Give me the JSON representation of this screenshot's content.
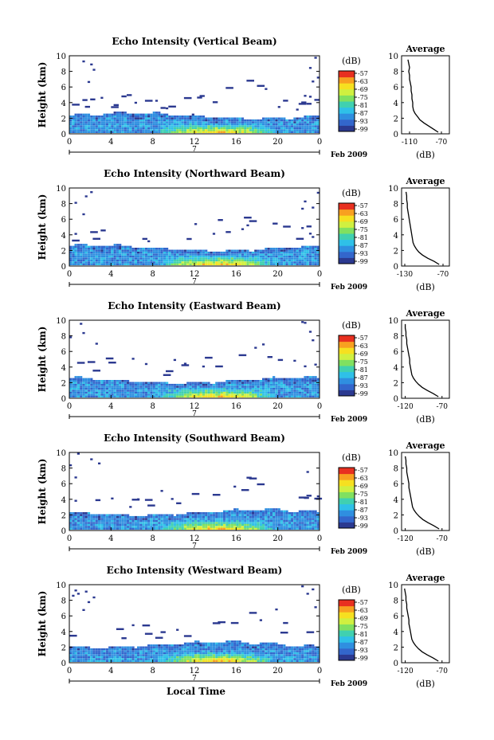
{
  "figure": {
    "x_axis_label": "Local Time",
    "date_label": "Feb 2009",
    "day_label": "7",
    "colorbar_unit": "(dB)",
    "colorbar_ticks": [
      "-57",
      "-63",
      "-69",
      "-75",
      "-81",
      "-87",
      "-93",
      "-99"
    ],
    "profile_title": "Average",
    "profile_unit": "(dB)"
  },
  "colorscale": [
    "#2b3990",
    "#3366cc",
    "#2f8fe0",
    "#2fc0e8",
    "#40d0b0",
    "#80e060",
    "#d0f040",
    "#f6e020",
    "#f8a020",
    "#e83020"
  ],
  "chart_data": [
    {
      "type": "heatmap",
      "title": "Echo Intensity (Vertical Beam)",
      "ylabel": "Height (km)",
      "x_ticks": [
        "0",
        "4",
        "8",
        "12",
        "16",
        "20",
        "0"
      ],
      "y_ticks": [
        "0",
        "2",
        "4",
        "6",
        "8",
        "10"
      ],
      "xlim": [
        0,
        24
      ],
      "ylim": [
        0,
        10
      ],
      "zlim": [
        -99,
        -57
      ],
      "profile": {
        "title": "Average",
        "xlabel": "(dB)",
        "x_ticks": [
          "-110",
          "-70"
        ],
        "xlim": [
          -120,
          -60
        ],
        "heights": [
          0.2,
          0.6,
          1.0,
          1.4,
          1.8,
          2.2,
          2.6,
          3.0,
          3.5,
          4.0,
          4.5,
          5.0,
          5.5,
          6.0,
          6.5,
          7.0,
          7.5,
          8.0,
          8.5,
          9.0,
          9.5
        ],
        "values": [
          -74,
          -80,
          -86,
          -92,
          -97,
          -100,
          -103,
          -105,
          -106,
          -106,
          -107,
          -107,
          -108,
          -108,
          -109,
          -110,
          -110,
          -111,
          -110,
          -111,
          -112
        ]
      }
    },
    {
      "type": "heatmap",
      "title": "Echo Intensity (Northward Beam)",
      "ylabel": "Height (km)",
      "x_ticks": [
        "0",
        "4",
        "8",
        "12",
        "16",
        "20",
        "0"
      ],
      "y_ticks": [
        "0",
        "2",
        "4",
        "6",
        "8",
        "10"
      ],
      "xlim": [
        0,
        24
      ],
      "ylim": [
        0,
        10
      ],
      "zlim": [
        -99,
        -57
      ],
      "profile": {
        "title": "Average",
        "xlabel": "(dB)",
        "x_ticks": [
          "-130",
          "-70"
        ],
        "xlim": [
          -135,
          -60
        ],
        "heights": [
          0.2,
          0.6,
          1.0,
          1.4,
          1.8,
          2.2,
          2.6,
          3.0,
          3.5,
          4.0,
          4.5,
          5.0,
          5.5,
          6.0,
          6.5,
          7.0,
          7.5,
          8.0,
          8.5,
          9.0,
          9.5
        ],
        "values": [
          -76,
          -84,
          -94,
          -102,
          -108,
          -112,
          -115,
          -117,
          -118,
          -119,
          -120,
          -121,
          -122,
          -123,
          -124,
          -125,
          -126,
          -126,
          -127,
          -127,
          -128
        ]
      }
    },
    {
      "type": "heatmap",
      "title": "Echo Intensity (Eastward Beam)",
      "ylabel": "Height (km)",
      "x_ticks": [
        "0",
        "4",
        "8",
        "12",
        "16",
        "20",
        "0"
      ],
      "y_ticks": [
        "0",
        "2",
        "4",
        "6",
        "8",
        "10"
      ],
      "xlim": [
        0,
        24
      ],
      "ylim": [
        0,
        10
      ],
      "zlim": [
        -99,
        -57
      ],
      "profile": {
        "title": "Average",
        "xlabel": "(dB)",
        "x_ticks": [
          "-120",
          "-70"
        ],
        "xlim": [
          -125,
          -60
        ],
        "heights": [
          0.2,
          0.6,
          1.0,
          1.4,
          1.8,
          2.2,
          2.6,
          3.0,
          3.5,
          4.0,
          4.5,
          5.0,
          5.5,
          6.0,
          6.5,
          7.0,
          7.5,
          8.0,
          8.5,
          9.0,
          9.5
        ],
        "values": [
          -75,
          -82,
          -90,
          -97,
          -102,
          -106,
          -109,
          -111,
          -112,
          -113,
          -114,
          -114,
          -115,
          -116,
          -117,
          -118,
          -118,
          -119,
          -119,
          -120,
          -120
        ]
      }
    },
    {
      "type": "heatmap",
      "title": "Echo Intensity (Southward Beam)",
      "ylabel": "Height (km)",
      "x_ticks": [
        "0",
        "4",
        "8",
        "12",
        "16",
        "20",
        "0"
      ],
      "y_ticks": [
        "0",
        "2",
        "4",
        "6",
        "8",
        "10"
      ],
      "xlim": [
        0,
        24
      ],
      "ylim": [
        0,
        10
      ],
      "zlim": [
        -99,
        -57
      ],
      "profile": {
        "title": "Average",
        "xlabel": "(dB)",
        "x_ticks": [
          "-120",
          "-70"
        ],
        "xlim": [
          -125,
          -60
        ],
        "heights": [
          0.2,
          0.6,
          1.0,
          1.4,
          1.8,
          2.2,
          2.6,
          3.0,
          3.5,
          4.0,
          4.5,
          5.0,
          5.5,
          6.0,
          6.5,
          7.0,
          7.5,
          8.0,
          8.5,
          9.0,
          9.5
        ],
        "values": [
          -74,
          -81,
          -89,
          -96,
          -101,
          -105,
          -108,
          -110,
          -111,
          -112,
          -113,
          -114,
          -115,
          -115,
          -116,
          -117,
          -118,
          -118,
          -119,
          -119,
          -120
        ]
      }
    },
    {
      "type": "heatmap",
      "title": "Echo Intensity (Westward Beam)",
      "ylabel": "Height (km)",
      "x_ticks": [
        "0",
        "4",
        "8",
        "12",
        "16",
        "20",
        "0"
      ],
      "y_ticks": [
        "0",
        "2",
        "4",
        "6",
        "8",
        "10"
      ],
      "xlim": [
        0,
        24
      ],
      "ylim": [
        0,
        10
      ],
      "zlim": [
        -99,
        -57
      ],
      "profile": {
        "title": "Average",
        "xlabel": "(dB)",
        "x_ticks": [
          "-120",
          "-70"
        ],
        "xlim": [
          -125,
          -60
        ],
        "heights": [
          0.2,
          0.6,
          1.0,
          1.4,
          1.8,
          2.2,
          2.6,
          3.0,
          3.5,
          4.0,
          4.5,
          5.0,
          5.5,
          6.0,
          6.5,
          7.0,
          7.5,
          8.0,
          8.5,
          9.0,
          9.5
        ],
        "values": [
          -75,
          -82,
          -90,
          -97,
          -102,
          -106,
          -109,
          -111,
          -112,
          -113,
          -114,
          -115,
          -115,
          -116,
          -117,
          -118,
          -118,
          -119,
          -119,
          -120,
          -121
        ]
      }
    }
  ]
}
